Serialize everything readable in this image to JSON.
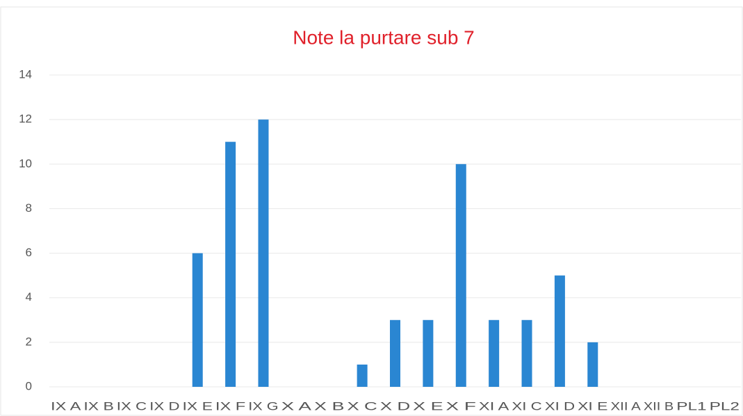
{
  "chart_data": {
    "type": "bar",
    "title": "Note la purtare sub 7",
    "categories": [
      "IX A",
      "IX B",
      "IX C",
      "IX D",
      "IX E",
      "IX F",
      "IX G",
      "X A",
      "X B",
      "X C",
      "X D",
      "X E",
      "X F",
      "XI A",
      "XI C",
      "XI D",
      "XI E",
      "XII A",
      "XII B",
      "PL1",
      "PL2"
    ],
    "values": [
      0,
      0,
      0,
      0,
      6,
      11,
      12,
      0,
      0,
      1,
      3,
      3,
      10,
      3,
      3,
      5,
      2,
      0,
      0,
      0,
      0
    ],
    "color": "#2a86d2",
    "ylim": [
      0,
      14
    ],
    "yticks": [
      0,
      2,
      4,
      6,
      8,
      10,
      12,
      14
    ],
    "grid": true
  }
}
